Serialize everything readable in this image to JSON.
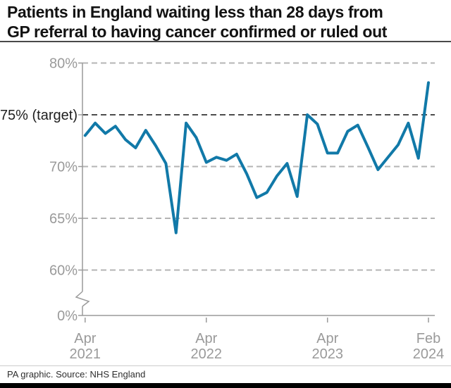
{
  "title": {
    "line1": "Patients in England waiting less than 28 days from",
    "line2": "GP referral to having cancer confirmed or ruled out"
  },
  "footer": {
    "credit": "PA graphic. Source: NHS England"
  },
  "colors": {
    "line": "#1179A8",
    "grid": "#b4b4b4",
    "target_grid": "#4d4d4d",
    "axis": "#9a9a9a",
    "tick_label": "#9a9a9a",
    "target_label": "#1f1f1f",
    "title_text": "#121212",
    "footer_bar": "#000000"
  },
  "chart_data": {
    "type": "line",
    "title": "Patients in England waiting less than 28 days from GP referral to having cancer confirmed or ruled out",
    "unit": "%",
    "x": [
      "Apr 2021",
      "May 2021",
      "Jun 2021",
      "Jul 2021",
      "Aug 2021",
      "Sep 2021",
      "Oct 2021",
      "Nov 2021",
      "Dec 2021",
      "Jan 2022",
      "Feb 2022",
      "Mar 2022",
      "Apr 2022",
      "May 2022",
      "Jun 2022",
      "Jul 2022",
      "Aug 2022",
      "Sep 2022",
      "Oct 2022",
      "Nov 2022",
      "Dec 2022",
      "Jan 2023",
      "Feb 2023",
      "Mar 2023",
      "Apr 2023",
      "May 2023",
      "Jun 2023",
      "Jul 2023",
      "Aug 2023",
      "Sep 2023",
      "Oct 2023",
      "Nov 2023",
      "Dec 2023",
      "Jan 2024",
      "Feb 2024"
    ],
    "values": [
      73.0,
      74.2,
      73.2,
      73.9,
      72.6,
      71.8,
      73.5,
      72.0,
      70.3,
      63.6,
      74.2,
      72.8,
      70.4,
      70.9,
      70.6,
      71.2,
      69.3,
      67.0,
      67.5,
      69.1,
      70.3,
      67.1,
      75.0,
      74.1,
      71.3,
      71.3,
      73.4,
      74.0,
      71.9,
      69.7,
      70.9,
      72.1,
      74.2,
      70.8,
      78.1
    ],
    "target_value": 75,
    "ylim": [
      0,
      80
    ],
    "axis_break": true,
    "grid": true,
    "legend": "none",
    "y_axis": {
      "ticks": [
        {
          "label": "80%",
          "value": 80
        },
        {
          "label": "75% (target)",
          "value": 75,
          "target": true
        },
        {
          "label": "70%",
          "value": 70
        },
        {
          "label": "65%",
          "value": 65
        },
        {
          "label": "60%",
          "value": 60
        },
        {
          "label": "0%",
          "value": 0,
          "base": true
        }
      ]
    },
    "x_axis": {
      "ticks": [
        {
          "index": 0,
          "label": "Apr 2021"
        },
        {
          "index": 12,
          "label": "Apr 2022"
        },
        {
          "index": 24,
          "label": "Apr 2023"
        },
        {
          "index": 34,
          "label": "Feb 2024"
        }
      ]
    }
  }
}
